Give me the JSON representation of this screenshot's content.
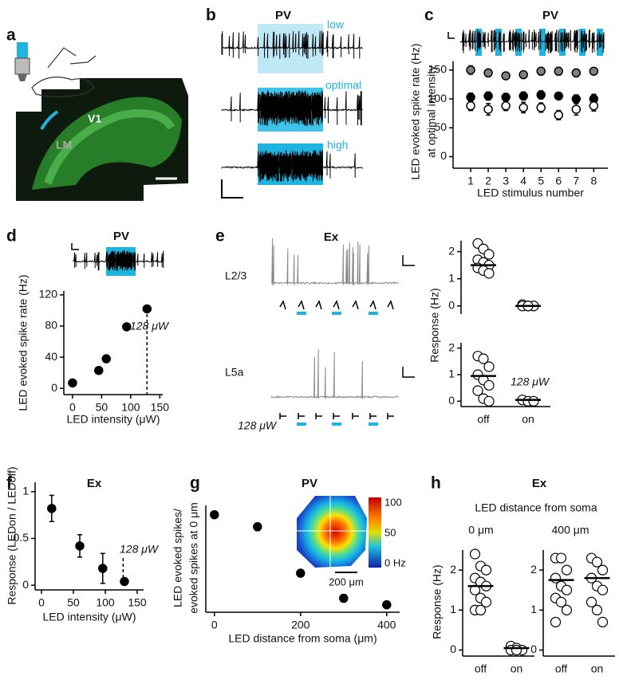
{
  "figure": {
    "panel_labels": [
      "a",
      "b",
      "c",
      "d",
      "e",
      "f",
      "g",
      "h"
    ],
    "a": {
      "v1": "V1",
      "lm": "LM"
    },
    "b": {
      "title": "PV",
      "low": "low",
      "optimal": "optimal",
      "high": "high"
    },
    "e": {
      "title": "Ex",
      "l23": "L2/3",
      "l5a": "L5a",
      "intensity": "128 μW",
      "ylabel": "Response (Hz)"
    },
    "h": {
      "title": "Ex",
      "subtitle": "LED distance from soma",
      "ylabel": "Response (Hz)"
    }
  },
  "chart_data": [
    {
      "type": "scatter",
      "title": "PV",
      "ylabel": [
        "LED evoked spike rate (Hz)",
        "at optimal intensity"
      ],
      "xlabel": "LED stimulus number",
      "x": [
        1,
        2,
        3,
        4,
        5,
        6,
        7,
        8
      ],
      "xlim": [
        0,
        8.8
      ],
      "xticks": [
        1,
        2,
        3,
        4,
        5,
        6,
        7,
        8
      ],
      "ylim": [
        -20,
        165
      ],
      "yticks": [
        0,
        50,
        100,
        150
      ],
      "series": [
        {
          "color": "#808080",
          "marker": "filled",
          "values": [
            150,
            145,
            140,
            142,
            148,
            148,
            145,
            148
          ],
          "errors": [
            8,
            7,
            6,
            6,
            7,
            7,
            7,
            6
          ]
        },
        {
          "color": "#000000",
          "marker": "filled",
          "values": [
            103,
            105,
            103,
            105,
            107,
            105,
            100,
            100
          ],
          "errors": [
            7,
            7,
            6,
            7,
            7,
            6,
            7,
            8
          ]
        },
        {
          "color": "#000000",
          "marker": "open",
          "values": [
            88,
            82,
            88,
            85,
            85,
            72,
            82,
            88
          ],
          "errors": [
            8,
            10,
            8,
            9,
            8,
            8,
            10,
            9
          ]
        }
      ]
    },
    {
      "type": "scatter",
      "title": "PV",
      "ylabel": "LED evoked spike rate (Hz)",
      "xlabel": "LED intensity (μW)",
      "x": [
        0,
        45,
        58,
        93,
        128
      ],
      "xlim": [
        -15,
        155
      ],
      "xticks": [
        0,
        50,
        100,
        150
      ],
      "ylim": [
        -8,
        125
      ],
      "yticks": [
        0,
        40,
        80,
        120
      ],
      "series": [
        {
          "color": "#000000",
          "marker": "filled",
          "values": [
            7,
            23,
            38,
            79,
            102
          ],
          "errors": [
            2,
            2,
            2,
            3,
            2
          ]
        }
      ],
      "annotation": {
        "text": "128 μW",
        "x": 128
      }
    },
    {
      "type": "strip",
      "ylim": [
        -0.3,
        2.4
      ],
      "yticks": [
        0,
        1,
        2
      ],
      "values": [
        [
          2.3,
          2.1,
          1.9,
          1.7,
          1.6,
          1.5,
          1.4,
          1.3,
          1.2
        ],
        [
          0.05,
          0,
          0,
          0,
          0
        ]
      ],
      "means": [
        1.5,
        0
      ]
    },
    {
      "type": "strip",
      "categories": [
        "off",
        "on"
      ],
      "ylim": [
        -0.2,
        2.2
      ],
      "yticks": [
        0,
        1,
        2
      ],
      "values": [
        [
          1.7,
          1.6,
          1.3,
          1.0,
          0.8,
          0.6,
          0.4,
          0.1,
          0
        ],
        [
          0.05,
          0,
          0
        ]
      ],
      "means": [
        0.95,
        0.05
      ],
      "annotation": {
        "text": "128 μW"
      }
    },
    {
      "type": "scatter",
      "title": "Ex",
      "ylabel": "Response (LEDon / LEDoff)",
      "xlabel": "LED intensity (μW)",
      "x": [
        16,
        60,
        96,
        130
      ],
      "xlim": [
        -10,
        160
      ],
      "xticks": [
        0,
        50,
        100,
        150
      ],
      "ylim": [
        -0.05,
        1.1
      ],
      "yticks": [
        0,
        0.5,
        1
      ],
      "series": [
        {
          "color": "#000000",
          "marker": "filled",
          "values": [
            0.82,
            0.42,
            0.18,
            0.04
          ],
          "errors": [
            0.14,
            0.12,
            0.16,
            0.03
          ]
        }
      ],
      "annotation": {
        "text": "128 μW",
        "x": 128
      }
    },
    {
      "type": "scatter",
      "title": "PV",
      "ylabel": [
        "LED evoked spikes/",
        "evoked spikes at 0 μm"
      ],
      "xlabel": "LED distance from soma (μm)",
      "x": [
        0,
        100,
        200,
        300,
        400
      ],
      "xlim": [
        -20,
        430
      ],
      "xticks": [
        0,
        200,
        400
      ],
      "ylim": [
        -0.05,
        1.1
      ],
      "series": [
        {
          "color": "#000000",
          "marker": "filled",
          "values": [
            1,
            0.87,
            0.37,
            0.1,
            0.03
          ],
          "errors": [
            0,
            0.04,
            0.03,
            0.04,
            0.02
          ]
        }
      ],
      "inset": {
        "colorbar_lim": [
          0,
          100
        ],
        "colorbar_ticks": [
          100,
          50,
          {
            "value": 0,
            "label": "0 Hz"
          }
        ],
        "scale_label": "200 μm"
      }
    },
    {
      "type": "strip",
      "title": "0 μm",
      "categories": [
        "off",
        "on"
      ],
      "ylim": [
        -0.15,
        2.5
      ],
      "yticks": [
        0,
        1,
        2
      ],
      "values": [
        [
          2.4,
          2.1,
          2.0,
          1.8,
          1.7,
          1.6,
          1.5,
          1.3,
          1.2,
          1.0,
          1.0
        ],
        [
          0.1,
          0.05,
          0,
          0,
          0
        ]
      ],
      "means": [
        1.6,
        0.05
      ]
    },
    {
      "type": "strip",
      "title": "400 μm",
      "categories": [
        "off",
        "on"
      ],
      "ylim": [
        -0.15,
        2.5
      ],
      "yticks": [
        0,
        1,
        2
      ],
      "values": [
        [
          2.3,
          2.3,
          2.0,
          1.8,
          1.6,
          1.5,
          1.3,
          1.2,
          1.0,
          0.7
        ],
        [
          2.3,
          2.2,
          2.0,
          1.8,
          1.6,
          1.5,
          1.2,
          1.0,
          0.7
        ]
      ],
      "means": [
        1.75,
        1.8
      ]
    }
  ]
}
